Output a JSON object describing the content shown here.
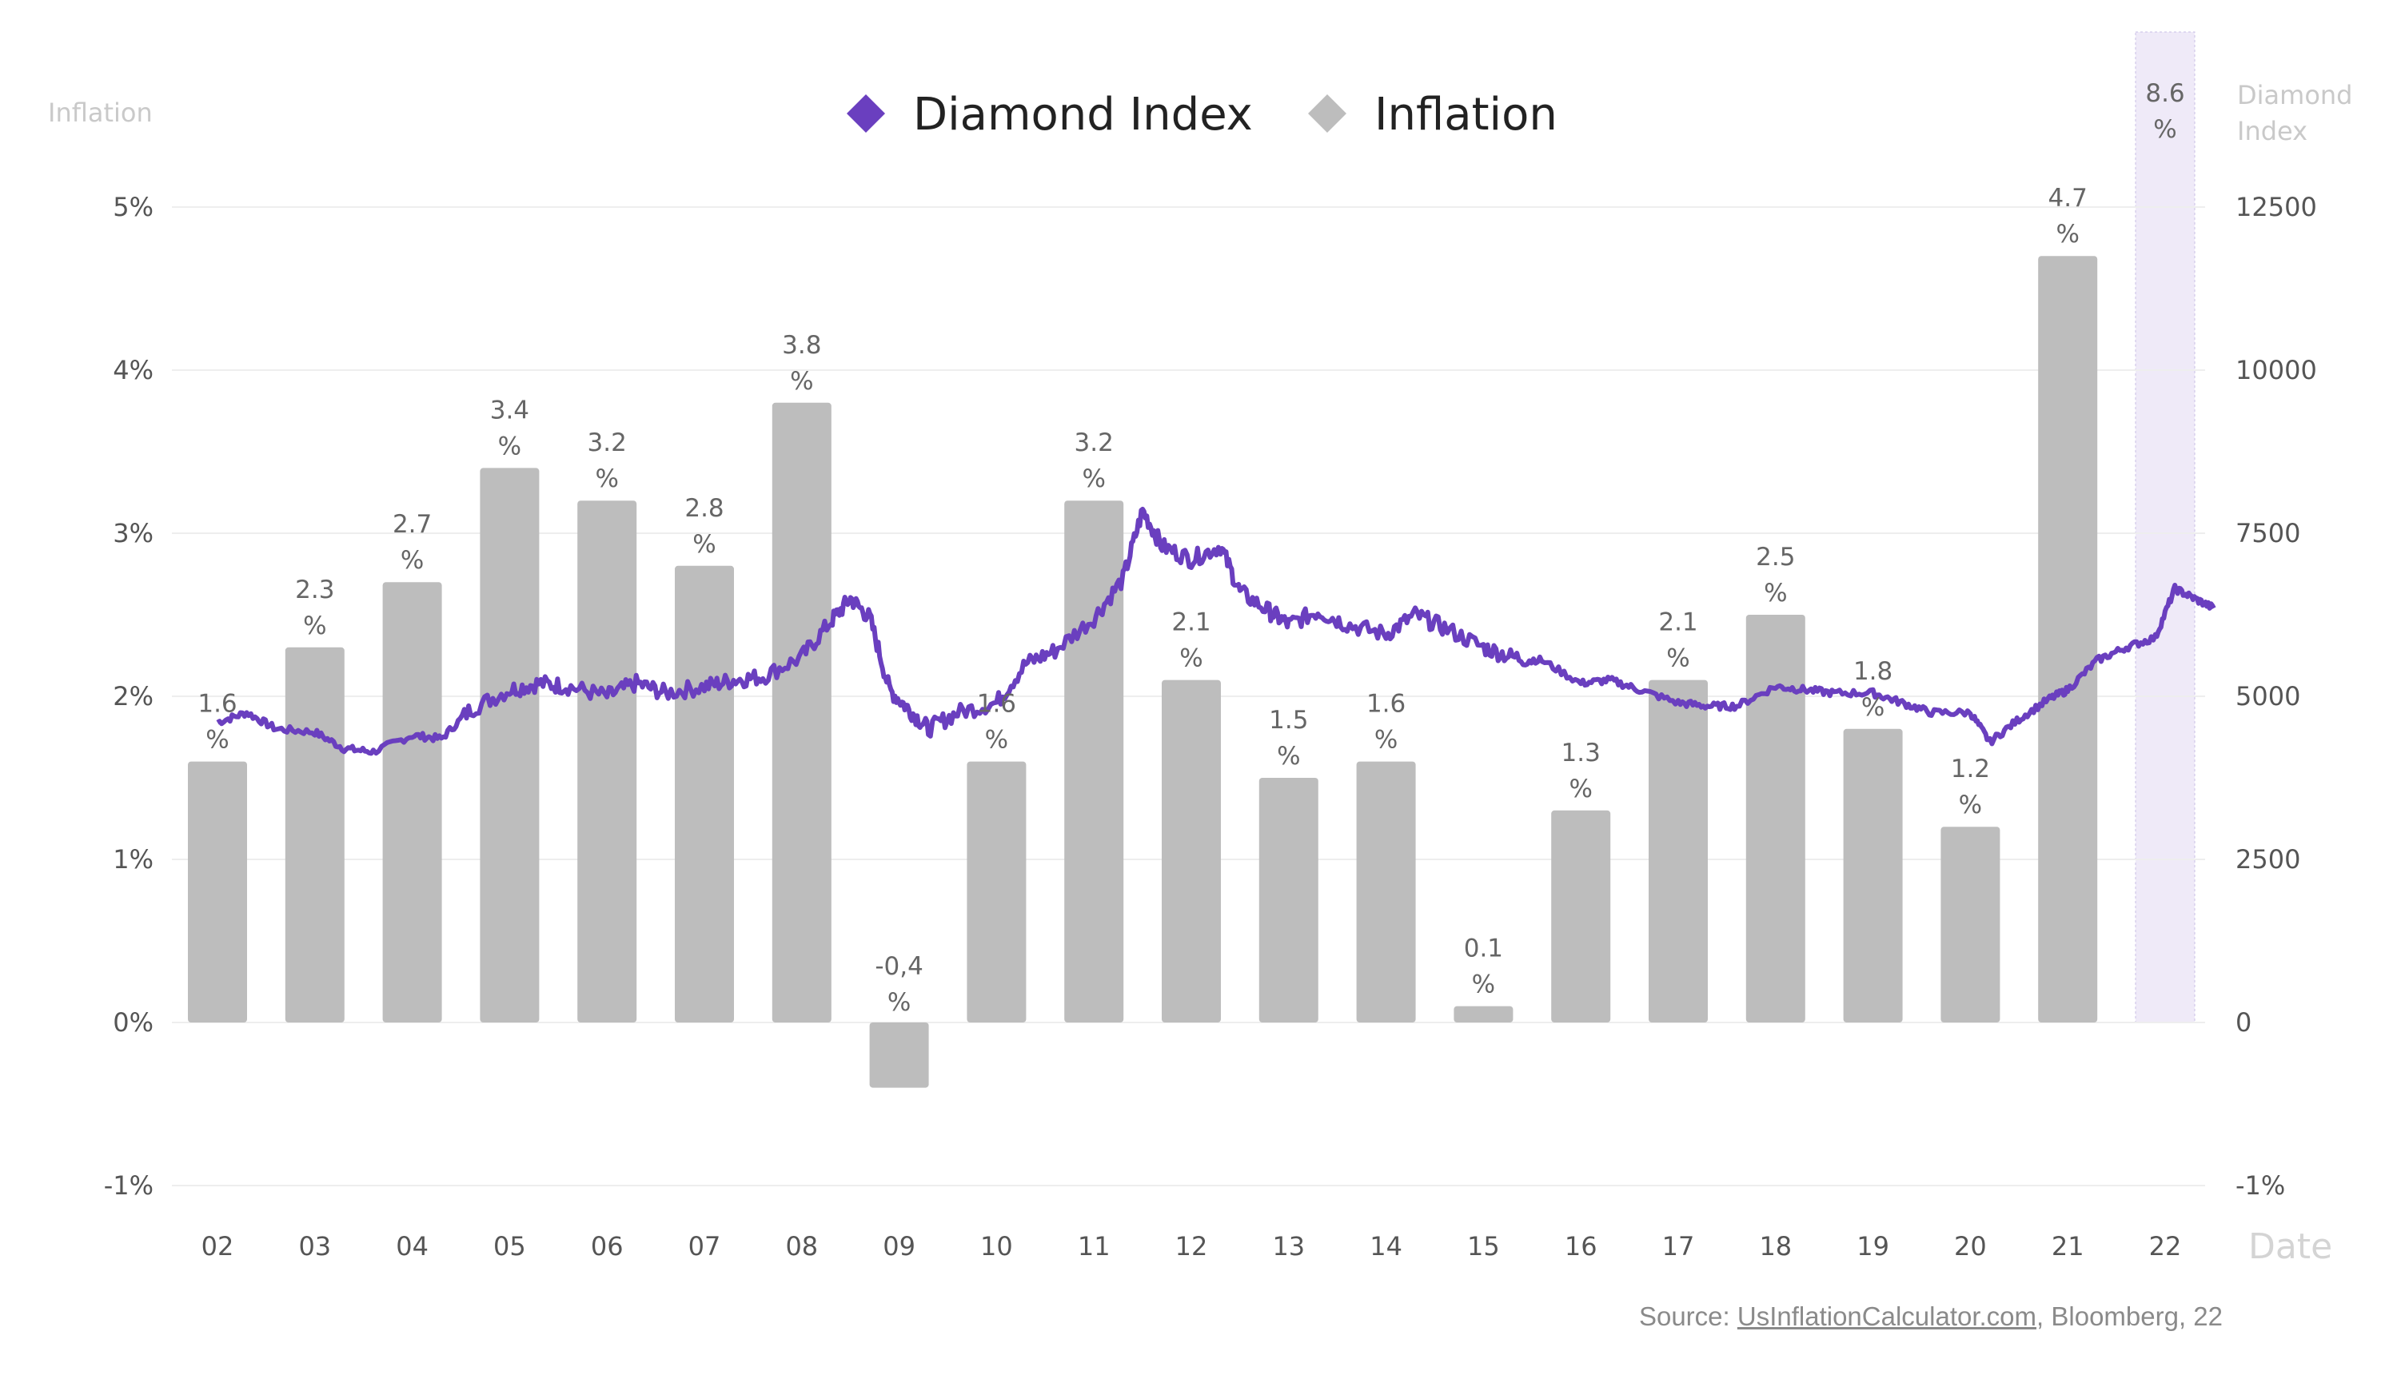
{
  "chart_data": {
    "type": "bar+line",
    "legend": [
      {
        "name": "Diamond Index",
        "color": "#6a3fbf",
        "marker": "diamond"
      },
      {
        "name": "Inflation",
        "color": "#bdbdbd",
        "marker": "diamond"
      }
    ],
    "left_axis": {
      "title": "Inflation",
      "ylim": [
        -1,
        5
      ],
      "ticks": [
        "-1%",
        "0%",
        "1%",
        "2%",
        "3%",
        "4%",
        "5%"
      ]
    },
    "right_axis": {
      "title_lines": [
        "Diamond",
        "Index"
      ],
      "ylim": [
        -2500,
        12500
      ],
      "ticks": [
        "-1%",
        "0",
        "2500",
        "5000",
        "7500",
        "10000",
        "12500"
      ]
    },
    "x_title": "Date",
    "categories": [
      "02",
      "03",
      "04",
      "05",
      "06",
      "07",
      "08",
      "09",
      "10",
      "11",
      "12",
      "13",
      "14",
      "15",
      "16",
      "17",
      "18",
      "19",
      "20",
      "21",
      "22"
    ],
    "inflation_values": [
      1.6,
      2.3,
      2.7,
      3.4,
      3.2,
      2.8,
      3.8,
      -0.4,
      1.6,
      3.2,
      2.1,
      1.5,
      1.6,
      0.1,
      1.3,
      2.1,
      2.5,
      1.8,
      1.2,
      4.7,
      8.6
    ],
    "inflation_labels": [
      "1.6",
      "2.3",
      "2.7",
      "3.4",
      "3.2",
      "2.8",
      "3.8",
      "-0,4",
      "1.6",
      "3.2",
      "2.1",
      "1.5",
      "1.6",
      "0.1",
      "1.3",
      "2.1",
      "2.5",
      "1.8",
      "1.2",
      "4.7",
      "8.6"
    ],
    "percent_sign": "%",
    "highlight_category": "22",
    "diamond_index_points": [
      [
        2002.0,
        4600
      ],
      [
        2002.3,
        4750
      ],
      [
        2002.6,
        4500
      ],
      [
        2003.0,
        4450
      ],
      [
        2003.3,
        4200
      ],
      [
        2003.6,
        4150
      ],
      [
        2004.0,
        4400
      ],
      [
        2004.3,
        4350
      ],
      [
        2004.6,
        4800
      ],
      [
        2005.0,
        5100
      ],
      [
        2005.3,
        5200
      ],
      [
        2005.6,
        5150
      ],
      [
        2006.0,
        5000
      ],
      [
        2006.3,
        5200
      ],
      [
        2006.6,
        5050
      ],
      [
        2007.0,
        5150
      ],
      [
        2007.3,
        5250
      ],
      [
        2007.6,
        5300
      ],
      [
        2008.0,
        5600
      ],
      [
        2008.3,
        6150
      ],
      [
        2008.5,
        6500
      ],
      [
        2008.7,
        6200
      ],
      [
        2008.9,
        5100
      ],
      [
        2009.1,
        4800
      ],
      [
        2009.3,
        4500
      ],
      [
        2009.6,
        4750
      ],
      [
        2010.0,
        4900
      ],
      [
        2010.3,
        5500
      ],
      [
        2010.6,
        5700
      ],
      [
        2011.0,
        6200
      ],
      [
        2011.3,
        6800
      ],
      [
        2011.5,
        7850
      ],
      [
        2011.7,
        7300
      ],
      [
        2012.0,
        7100
      ],
      [
        2012.3,
        7300
      ],
      [
        2012.5,
        6600
      ],
      [
        2012.8,
        6300
      ],
      [
        2013.0,
        6100
      ],
      [
        2013.3,
        6300
      ],
      [
        2013.6,
        6100
      ],
      [
        2014.0,
        5950
      ],
      [
        2014.3,
        6250
      ],
      [
        2014.6,
        6050
      ],
      [
        2015.0,
        5750
      ],
      [
        2015.3,
        5600
      ],
      [
        2015.6,
        5550
      ],
      [
        2016.0,
        5200
      ],
      [
        2016.3,
        5250
      ],
      [
        2016.6,
        5100
      ],
      [
        2017.0,
        4900
      ],
      [
        2017.3,
        4850
      ],
      [
        2017.6,
        4850
      ],
      [
        2018.0,
        5150
      ],
      [
        2018.3,
        5100
      ],
      [
        2018.6,
        5050
      ],
      [
        2019.0,
        5050
      ],
      [
        2019.3,
        4900
      ],
      [
        2019.6,
        4750
      ],
      [
        2020.0,
        4750
      ],
      [
        2020.2,
        4300
      ],
      [
        2020.5,
        4650
      ],
      [
        2020.8,
        4950
      ],
      [
        2021.0,
        5100
      ],
      [
        2021.3,
        5550
      ],
      [
        2021.6,
        5750
      ],
      [
        2021.9,
        5900
      ],
      [
        2022.1,
        6650
      ],
      [
        2022.3,
        6500
      ],
      [
        2022.5,
        6350
      ]
    ],
    "source_prefix": "Source: ",
    "source_link": "UsInflationCalculator.com",
    "source_suffix": ", Bloomberg, 22"
  },
  "colors": {
    "bar": "#bdbdbd",
    "line": "#6a3fbf",
    "highlight": "#efeaf8",
    "grid": "#eeeeee"
  }
}
